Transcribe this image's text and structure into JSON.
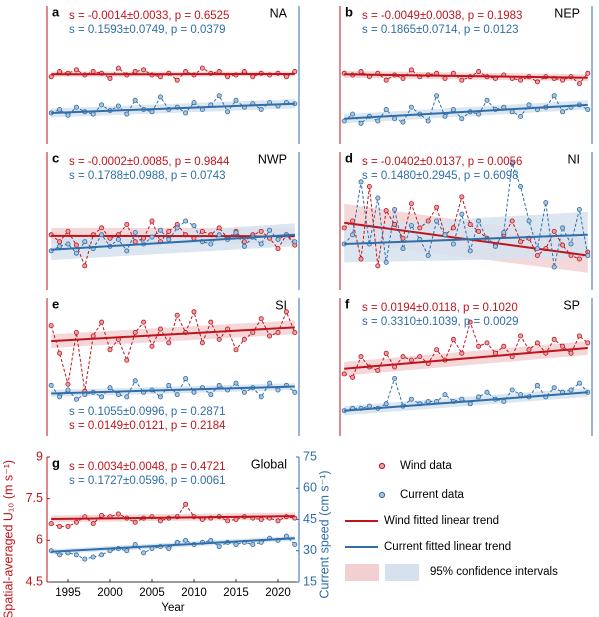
{
  "chart_data": [
    {
      "type": "line",
      "label": "a",
      "region": "NA",
      "stats_loc": "upper left",
      "xlim": [
        1992.5,
        2022.5
      ],
      "ylim": [
        5,
        9
      ],
      "y2lim": [
        0,
        60
      ],
      "x": [
        1993,
        1994,
        1995,
        1996,
        1997,
        1998,
        1999,
        2000,
        2001,
        2002,
        2003,
        2004,
        2005,
        2006,
        2007,
        2008,
        2009,
        2010,
        2011,
        2012,
        2013,
        2014,
        2015,
        2016,
        2017,
        2018,
        2019,
        2020,
        2021,
        2022
      ],
      "annotations": [
        {
          "text": "s = -0.0014±0.0033, p = 0.6525",
          "color": "#c0141c"
        },
        {
          "text": "s = 0.1593±0.0749, p = 0.0379",
          "color": "#2f6ea8"
        }
      ],
      "series": [
        {
          "color": "#c0141c",
          "values": [
            6.95,
            7.1,
            7.05,
            7.15,
            7.0,
            7.1,
            7.05,
            6.9,
            7.2,
            7.0,
            7.1,
            7.15,
            7.0,
            6.95,
            7.05,
            6.85,
            7.1,
            7.0,
            7.2,
            7.05,
            7.1,
            6.95,
            7.0,
            7.1,
            6.95,
            7.05,
            7.0,
            7.05,
            6.95,
            7.1
          ],
          "trend": [
            7.02,
            7.03
          ],
          "ci_lower": [
            6.95,
            6.96
          ],
          "ci_upper": [
            7.1,
            7.1
          ]
        },
        {
          "color": "#2f6ea8",
          "axis": "y2",
          "values": [
            13.5,
            15,
            12.5,
            16,
            14,
            13,
            17,
            14.5,
            16.5,
            13,
            19,
            15,
            14,
            20.5,
            15,
            16,
            13.5,
            18,
            15,
            17,
            21,
            14,
            19,
            16,
            17.5,
            15,
            18,
            16.5,
            18,
            17.5
          ],
          "trend": [
            13.5,
            17.5
          ],
          "ci_lower": [
            11.5,
            15.5
          ],
          "ci_upper": [
            15.5,
            19.5
          ]
        }
      ]
    },
    {
      "type": "line",
      "label": "b",
      "region": "NEP",
      "stats_loc": "upper left",
      "xlim": [
        1992.5,
        2022.5
      ],
      "ylim": [
        5,
        9
      ],
      "y2lim": [
        0,
        60
      ],
      "x": [
        1993,
        1994,
        1995,
        1996,
        1997,
        1998,
        1999,
        2000,
        2001,
        2002,
        2003,
        2004,
        2005,
        2006,
        2007,
        2008,
        2009,
        2010,
        2011,
        2012,
        2013,
        2014,
        2015,
        2016,
        2017,
        2018,
        2019,
        2020,
        2021,
        2022
      ],
      "annotations": [
        {
          "text": "s = -0.0049±0.0038, p = 0.1983",
          "color": "#c0141c"
        },
        {
          "text": "s = 0.1865±0.0714, p = 0.0123",
          "color": "#2f6ea8"
        }
      ],
      "series": [
        {
          "color": "#c0141c",
          "values": [
            7.05,
            7.0,
            7.1,
            6.95,
            7.05,
            6.85,
            7.0,
            6.9,
            7.15,
            6.95,
            7.0,
            7.05,
            6.9,
            7.05,
            6.85,
            6.95,
            7.1,
            6.95,
            6.9,
            7.0,
            6.9,
            6.85,
            6.95,
            6.8,
            6.95,
            6.9,
            6.85,
            6.95,
            6.75,
            7.05
          ],
          "trend": [
            7.02,
            6.92
          ],
          "ci_lower": [
            6.92,
            6.82
          ],
          "ci_upper": [
            7.12,
            7.02
          ]
        },
        {
          "color": "#2f6ea8",
          "axis": "y2",
          "values": [
            10,
            13,
            9,
            12,
            10,
            15,
            11,
            9.5,
            16,
            13,
            10,
            21,
            12,
            15,
            11,
            14,
            13,
            19,
            15,
            16,
            14,
            12,
            17,
            15,
            16,
            21,
            14,
            16,
            17,
            15
          ],
          "trend": [
            11,
            17
          ],
          "ci_lower": [
            9,
            15
          ],
          "ci_upper": [
            13,
            19
          ]
        }
      ]
    },
    {
      "type": "line",
      "label": "c",
      "region": "NWP",
      "stats_loc": "upper left",
      "xlim": [
        1992.5,
        2022.5
      ],
      "ylim": [
        5,
        9
      ],
      "y2lim": [
        0,
        60
      ],
      "x": [
        1993,
        1994,
        1995,
        1996,
        1997,
        1998,
        1999,
        2000,
        2001,
        2002,
        2003,
        2004,
        2005,
        2006,
        2007,
        2008,
        2009,
        2010,
        2011,
        2012,
        2013,
        2014,
        2015,
        2016,
        2017,
        2018,
        2019,
        2020,
        2021,
        2022
      ],
      "annotations": [
        {
          "text": "s = -0.0002±0.0085, p = 0.9844",
          "color": "#c0141c"
        },
        {
          "text": "s = 0.1788±0.0988, p = 0.0743",
          "color": "#2f6ea8"
        }
      ],
      "series": [
        {
          "color": "#c0141c",
          "values": [
            6.6,
            6.4,
            6.7,
            6.3,
            5.7,
            6.6,
            6.8,
            6.5,
            6.6,
            6.9,
            6.4,
            6.5,
            7.0,
            6.4,
            6.7,
            6.9,
            6.6,
            6.5,
            6.7,
            6.6,
            6.8,
            6.5,
            6.7,
            6.4,
            6.6,
            6.7,
            6.5,
            6.2,
            6.6,
            6.3
          ],
          "trend": [
            6.57,
            6.56
          ],
          "ci_lower": [
            6.35,
            6.35
          ],
          "ci_upper": [
            6.8,
            6.8
          ]
        },
        {
          "color": "#2f6ea8",
          "axis": "y2",
          "values": [
            17,
            19,
            20,
            16,
            21,
            18,
            24,
            19,
            22,
            17,
            25,
            20,
            23,
            26,
            22,
            27,
            30,
            28,
            21,
            20,
            24,
            22,
            25,
            19,
            23,
            20,
            26,
            22,
            24,
            21
          ],
          "trend": [
            17.5,
            24
          ],
          "ci_lower": [
            13,
            19
          ],
          "ci_upper": [
            22,
            29
          ]
        }
      ]
    },
    {
      "type": "line",
      "label": "d",
      "region": "NI",
      "stats_loc": "upper left",
      "xlim": [
        1992.5,
        2022.5
      ],
      "ylim": [
        5,
        9
      ],
      "y2lim": [
        0,
        60
      ],
      "x": [
        1993,
        1994,
        1995,
        1996,
        1997,
        1998,
        1999,
        2000,
        2001,
        2002,
        2003,
        2004,
        2005,
        2006,
        2007,
        2008,
        2009,
        2010,
        2011,
        2012,
        2013,
        2014,
        2015,
        2016,
        2017,
        2018,
        2019,
        2020,
        2021,
        2022
      ],
      "annotations": [
        {
          "text": "s = -0.0402±0.0137, p = 0.0056",
          "color": "#c0141c"
        },
        {
          "text": "s = 0.1480±0.2945, p = 0.6098",
          "color": "#2f6ea8"
        }
      ],
      "series": [
        {
          "color": "#c0141c",
          "values": [
            6.8,
            7.0,
            5.9,
            8.0,
            5.7,
            7.3,
            6.9,
            6.5,
            7.5,
            6.8,
            7.0,
            7.4,
            6.6,
            6.8,
            7.7,
            6.9,
            6.7,
            6.5,
            6.3,
            6.6,
            7.0,
            6.4,
            6.5,
            6.0,
            6.2,
            6.7,
            6.3,
            6.0,
            5.9,
            6.1
          ],
          "trend": [
            6.95,
            6.0
          ],
          "ci_lower": [
            6.4,
            5.5
          ],
          "ci_upper": [
            7.5,
            6.5
          ]
        },
        {
          "color": "#2f6ea8",
          "axis": "y2",
          "values": [
            20,
            24,
            47,
            20,
            40,
            12,
            35,
            18,
            28,
            22,
            15,
            30,
            24,
            20,
            33,
            17,
            30,
            22,
            19,
            25,
            55,
            45,
            30,
            18,
            38,
            10,
            27,
            20,
            35,
            15
          ],
          "trend": [
            20,
            24
          ],
          "ci_lower": [
            12,
            14
          ],
          "ci_upper": [
            28,
            34
          ]
        }
      ]
    },
    {
      "type": "line",
      "label": "e",
      "region": "SI",
      "stats_loc": "lower left",
      "xlim": [
        1992.5,
        2022.5
      ],
      "ylim": [
        5,
        9
      ],
      "y2lim": [
        0,
        60
      ],
      "x": [
        1993,
        1994,
        1995,
        1996,
        1997,
        1998,
        1999,
        2000,
        2001,
        2002,
        2003,
        2004,
        2005,
        2006,
        2007,
        2008,
        2009,
        2010,
        2011,
        2012,
        2013,
        2014,
        2015,
        2016,
        2017,
        2018,
        2019,
        2020,
        2021,
        2022
      ],
      "annotations": [
        {
          "text": "s = 0.1055±0.0996, p = 0.2871",
          "color": "#2f6ea8"
        },
        {
          "text": "s = 0.0149±0.0121, p = 0.2184",
          "color": "#c0141c"
        }
      ],
      "series": [
        {
          "color": "#c0141c",
          "values": [
            8.2,
            7.4,
            6.5,
            8.0,
            6.3,
            7.9,
            8.3,
            7.5,
            7.8,
            7.2,
            8.0,
            8.3,
            7.6,
            8.1,
            7.7,
            8.5,
            8.0,
            8.6,
            7.7,
            8.3,
            7.8,
            8.1,
            7.5,
            7.8,
            8.0,
            8.4,
            7.9,
            8.0,
            8.6,
            8.0
          ],
          "trend": [
            7.75,
            8.15
          ],
          "ci_lower": [
            7.55,
            7.95
          ],
          "ci_upper": [
            7.95,
            8.35
          ]
        },
        {
          "color": "#2f6ea8",
          "axis": "y2",
          "values": [
            22,
            17,
            20,
            16,
            18,
            19,
            17,
            21,
            18,
            17,
            24,
            19,
            20,
            17,
            22,
            18,
            25,
            19,
            21,
            18,
            22,
            20,
            23,
            19,
            21,
            17,
            23,
            20,
            22,
            19
          ],
          "trend": [
            18.5,
            21.5
          ],
          "ci_lower": [
            17,
            20
          ],
          "ci_upper": [
            20,
            23
          ]
        }
      ]
    },
    {
      "type": "line",
      "label": "f",
      "region": "SP",
      "stats_loc": "upper left",
      "xlim": [
        1992.5,
        2022.5
      ],
      "ylim": [
        5,
        9
      ],
      "y2lim": [
        0,
        60
      ],
      "x": [
        1993,
        1994,
        1995,
        1996,
        1997,
        1998,
        1999,
        2000,
        2001,
        2002,
        2003,
        2004,
        2005,
        2006,
        2007,
        2008,
        2009,
        2010,
        2011,
        2012,
        2013,
        2014,
        2015,
        2016,
        2017,
        2018,
        2019,
        2020,
        2021,
        2022
      ],
      "annotations": [
        {
          "text": "s = 0.0194±0.0118, p = 0.1020",
          "color": "#c0141c"
        },
        {
          "text": "s = 0.3310±0.1039, p = 0.0029",
          "color": "#2f6ea8"
        }
      ],
      "series": [
        {
          "color": "#c0141c",
          "values": [
            6.8,
            6.7,
            7.3,
            7.0,
            6.9,
            7.4,
            7.0,
            7.3,
            7.2,
            7.3,
            7.1,
            7.5,
            7.2,
            7.8,
            7.4,
            8.3,
            7.6,
            7.7,
            7.4,
            7.6,
            7.3,
            7.9,
            7.5,
            7.7,
            7.4,
            7.8,
            7.6,
            7.4,
            7.9,
            7.7
          ],
          "trend": [
            6.95,
            7.55
          ],
          "ci_lower": [
            6.75,
            7.35
          ],
          "ci_upper": [
            7.15,
            7.75
          ]
        },
        {
          "color": "#2f6ea8",
          "axis": "y2",
          "values": [
            11,
            12,
            12,
            13,
            12,
            14,
            25,
            13,
            16,
            14,
            15,
            15,
            18,
            15,
            16,
            14,
            17,
            19,
            16,
            15,
            20,
            18,
            17,
            22,
            17,
            21,
            19,
            20,
            23,
            19
          ],
          "trend": [
            11,
            19
          ],
          "ci_lower": [
            9,
            17
          ],
          "ci_upper": [
            13,
            21
          ]
        }
      ]
    },
    {
      "type": "line",
      "label": "g",
      "region": "Global",
      "stats_loc": "upper left",
      "xlim": [
        1992.5,
        2022.5
      ],
      "ylim": [
        4.5,
        9
      ],
      "y2lim": [
        15,
        75
      ],
      "xticks": [
        1995,
        2000,
        2005,
        2010,
        2015,
        2020
      ],
      "yticks": [
        4.5,
        6,
        7.5,
        9
      ],
      "y2ticks": [
        15,
        30,
        45,
        60,
        75
      ],
      "xlabel": "Year",
      "ylabel": "Spatial-averaged U₁₀ (m s⁻¹)",
      "y2label": "Current speed (cm s⁻¹)",
      "ci_label": "95% confidence intervals",
      "x": [
        1993,
        1994,
        1995,
        1996,
        1997,
        1998,
        1999,
        2000,
        2001,
        2002,
        2003,
        2004,
        2005,
        2006,
        2007,
        2008,
        2009,
        2010,
        2011,
        2012,
        2013,
        2014,
        2015,
        2016,
        2017,
        2018,
        2019,
        2020,
        2021,
        2022
      ],
      "annotations": [
        {
          "text": "s = 0.0034±0.0048, p = 0.4721",
          "color": "#c0141c"
        },
        {
          "text": "s = 0.1727±0.0596, p = 0.0061",
          "color": "#2f6ea8"
        }
      ],
      "series": [
        {
          "name": "Wind data",
          "trend_name": "Wind fitted linear trend",
          "color": "#c0141c",
          "values": [
            6.6,
            6.5,
            6.5,
            6.65,
            6.85,
            6.6,
            6.9,
            6.85,
            6.95,
            6.8,
            6.65,
            6.8,
            6.85,
            6.7,
            6.8,
            6.85,
            7.3,
            6.85,
            6.75,
            6.8,
            6.85,
            6.7,
            6.75,
            6.85,
            6.8,
            6.75,
            6.8,
            6.7,
            6.85,
            6.8
          ],
          "trend": [
            6.77,
            6.87
          ],
          "ci_lower": [
            6.65,
            6.75
          ],
          "ci_upper": [
            6.9,
            7.0
          ]
        },
        {
          "name": "Current data",
          "trend_name": "Current fitted linear trend",
          "color": "#2f6ea8",
          "axis": "y2",
          "values": [
            30,
            28,
            29,
            28,
            26,
            27,
            28,
            30,
            31,
            30,
            33,
            29,
            31,
            32,
            31,
            34,
            35,
            33,
            34,
            35,
            32,
            34,
            33,
            34,
            33,
            34,
            36,
            35,
            37,
            33
          ],
          "trend": [
            29.5,
            36
          ],
          "ci_lower": [
            28.3,
            34.8
          ],
          "ci_upper": [
            30.7,
            37.2
          ]
        }
      ]
    }
  ]
}
